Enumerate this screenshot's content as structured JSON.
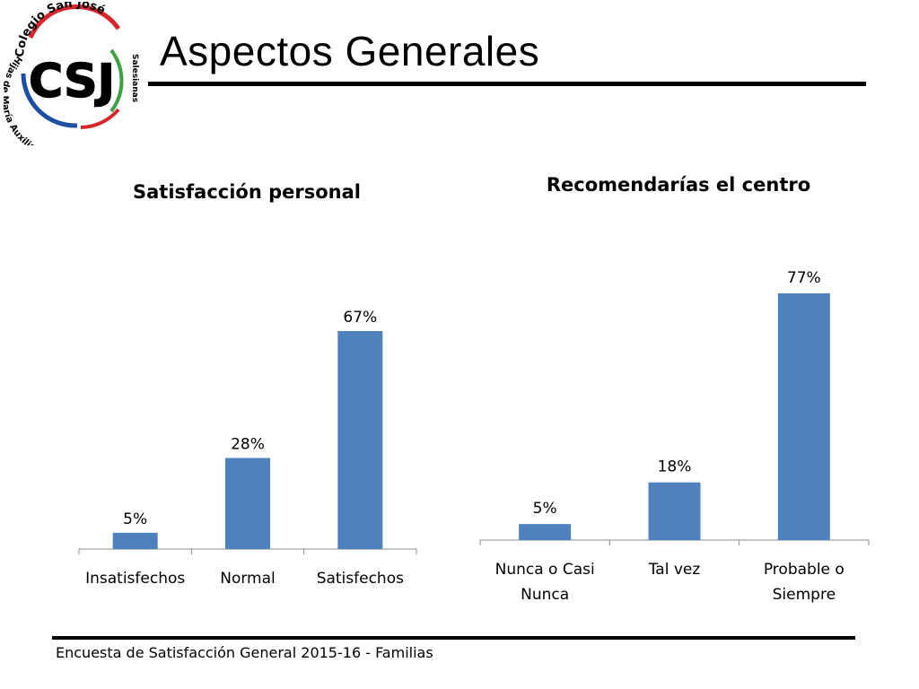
{
  "header": {
    "title": "Aspectos Generales",
    "logo": {
      "initials": "CSJ",
      "top_text": "Colegio San José",
      "left_text": "Hijas de María Auxiliadora",
      "right_text": "Salesianas",
      "colors": {
        "red": "#d9262c",
        "blue": "#1f4fa3",
        "green": "#3aa241"
      }
    }
  },
  "footer": {
    "text": "Encuesta  de Satisfacción General 2015-16 - Familias"
  },
  "colors": {
    "bar": "#4f81bd",
    "axis": "#8c8c8c"
  },
  "chart_data": [
    {
      "type": "bar",
      "title": "Satisfacción personal",
      "categories": [
        [
          "Insatisfechos"
        ],
        [
          "Normal"
        ],
        [
          "Satisfechos"
        ]
      ],
      "values": [
        5,
        28,
        67
      ],
      "data_labels": [
        "5%",
        "28%",
        "67%"
      ],
      "ylim": [
        0,
        67
      ],
      "grid": false,
      "legend": "none"
    },
    {
      "type": "bar",
      "title": "Recomendarías el centro",
      "categories": [
        [
          "Nunca o Casi",
          "Nunca"
        ],
        [
          "Tal vez"
        ],
        [
          "Probable o",
          "Siempre"
        ]
      ],
      "values": [
        5,
        18,
        77
      ],
      "data_labels": [
        "5%",
        "18%",
        "77%"
      ],
      "ylim": [
        0,
        77
      ],
      "grid": false,
      "legend": "none"
    }
  ]
}
